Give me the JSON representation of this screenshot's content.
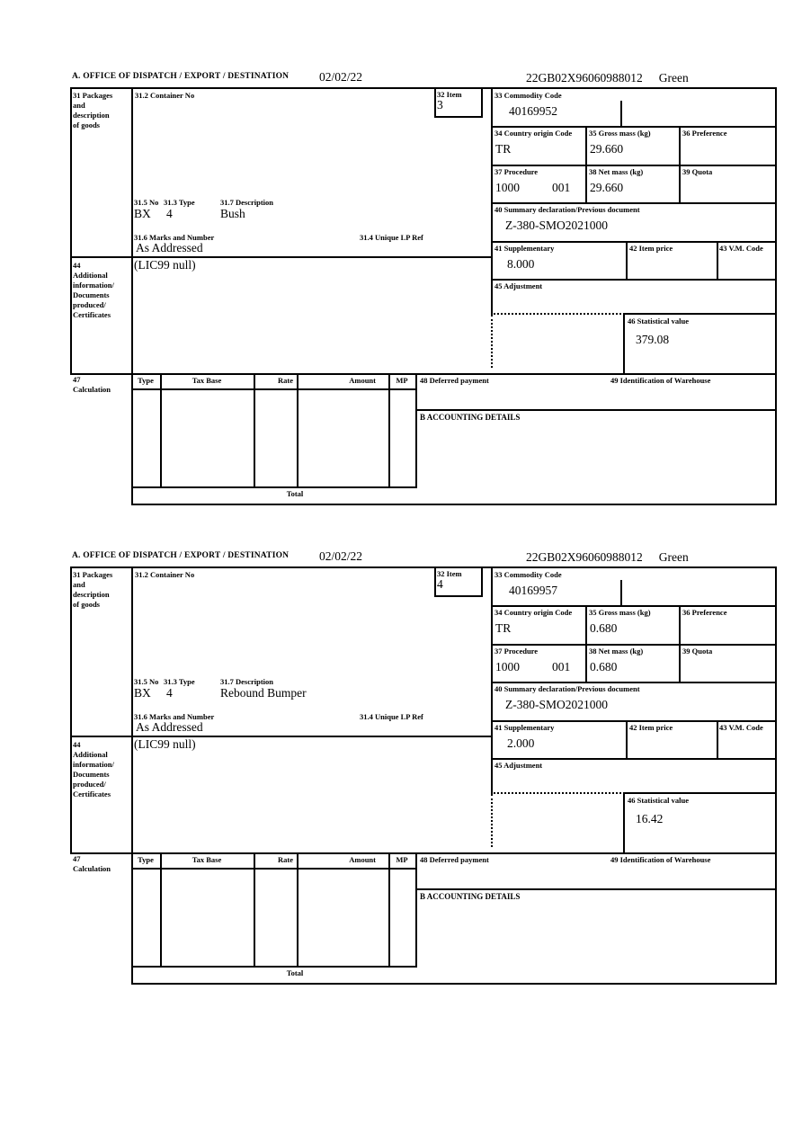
{
  "form": {
    "section_a_label": "A.  OFFICE OF DISPATCH / EXPORT / DESTINATION",
    "labels": {
      "box31": "31 Packages\nand\ndescription\nof goods",
      "box31_2": "31.2 Container No",
      "box32": "32 Item",
      "box33": "33 Commodity Code",
      "box34": "34 Country origin Code",
      "box35": "35 Gross mass (kg)",
      "box36": "36 Preference",
      "box37": "37 Procedure",
      "box38": "38 Net mass (kg)",
      "box39": "39 Quota",
      "box40": "40 Summary declaration/Previous document",
      "box41": "41 Supplementary",
      "box42": "42 Item price",
      "box43": "43 V.M. Code",
      "box44": "44\nAdditional\ninformation/\nDocuments\nproduced/\nCertificates",
      "box45": "45 Adjustment",
      "box46": "46 Statistical value",
      "box47": "47\nCalculation",
      "box48": "48 Deferred payment",
      "box49": "49 Identification of Warehouse",
      "box31_5": "31.5 No",
      "box31_3": "31.3 Type",
      "box31_7": "31.7 Description",
      "box31_6": "31.6 Marks and Number",
      "box31_4": "31.4 Unique LP Ref",
      "accounting": "B ACCOUNTING DETAILS",
      "total": "Total",
      "col_type": "Type",
      "col_tax_base": "Tax Base",
      "col_rate": "Rate",
      "col_amount": "Amount",
      "col_mp": "MP"
    }
  },
  "sections": [
    {
      "date": "02/02/22",
      "reference": "22GB02X96060988012",
      "routing": "Green",
      "item": "3",
      "commodity_code": "40169952",
      "country_origin_code": "TR",
      "gross_mass_kg": "29.660",
      "net_mass_kg": "29.660",
      "procedure": "1000",
      "procedure_extension": "001",
      "summary_declaration": "Z-380-SMO2021000",
      "supplementary": "8.000",
      "statistical_value": "379.08",
      "package_no": "BX",
      "package_type": "4",
      "goods_description": "Bush",
      "marks_and_number": "As Addressed",
      "additional_information": "(LIC99 null)"
    },
    {
      "date": "02/02/22",
      "reference": "22GB02X96060988012",
      "routing": "Green",
      "item": "4",
      "commodity_code": "40169957",
      "country_origin_code": "TR",
      "gross_mass_kg": "0.680",
      "net_mass_kg": "0.680",
      "procedure": "1000",
      "procedure_extension": "001",
      "summary_declaration": "Z-380-SMO2021000",
      "supplementary": "2.000",
      "statistical_value": "16.42",
      "package_no": "BX",
      "package_type": "4",
      "goods_description": "Rebound Bumper",
      "marks_and_number": "As Addressed",
      "additional_information": "(LIC99 null)"
    }
  ]
}
